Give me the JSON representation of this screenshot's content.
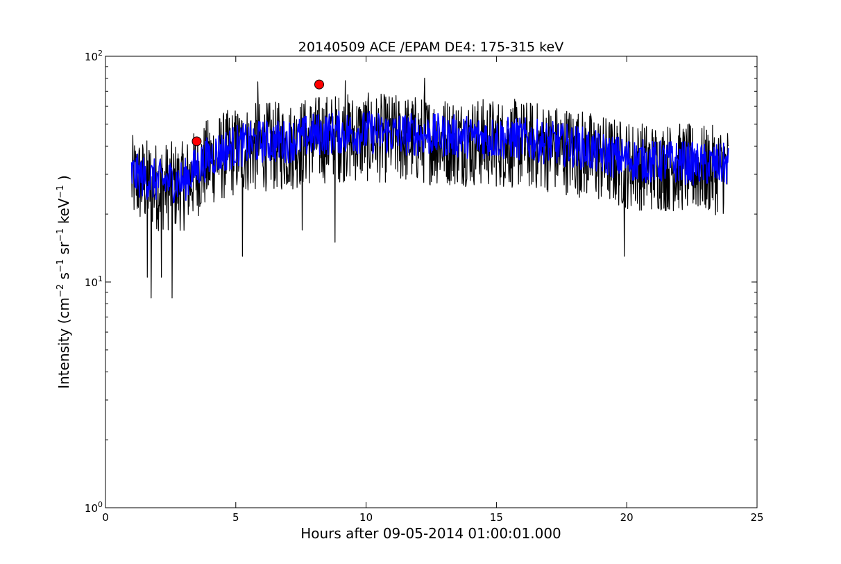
{
  "chart_data": {
    "type": "line",
    "title": "20140509 ACE /EPAM DE4: 175-315 keV",
    "xlabel": "Hours after 09-05-2014 01:00:01.000",
    "ylabel": {
      "prefix": "Intensity (cm",
      "exp1": "−2",
      "s": " s",
      "exp2": "−1",
      "sr": " sr",
      "exp3": "−1",
      "kev": " keV",
      "exp4": "−1",
      "suffix": " )"
    },
    "xlim": [
      0,
      25
    ],
    "ylim": [
      1,
      100
    ],
    "yscale": "log",
    "grid": false,
    "x_ticks": [
      "0",
      "5",
      "10",
      "15",
      "20",
      "25"
    ],
    "y_ticks": [
      {
        "base": "10",
        "exp": "0",
        "value": 1
      },
      {
        "base": "10",
        "exp": "1",
        "value": 10
      },
      {
        "base": "10",
        "exp": "2",
        "value": 100
      }
    ],
    "series": [
      {
        "color": "#000000",
        "style": "raw",
        "x_range": [
          1.0,
          23.9
        ],
        "anchors_x": [
          1.0,
          2.0,
          3.0,
          4.0,
          5.0,
          6.0,
          7.0,
          8.0,
          9.0,
          10.0,
          12.0,
          14.0,
          16.0,
          18.0,
          19.0,
          20.0,
          21.0,
          22.0,
          23.0,
          23.9
        ],
        "anchors_y": [
          30,
          28,
          28,
          36,
          40,
          42,
          42,
          45,
          46,
          46,
          45,
          44,
          43,
          40,
          37,
          35,
          34,
          34,
          33,
          33
        ],
        "spread_min": 0.6,
        "spread_max": 1.5,
        "spikes": [
          [
            8.8,
            15
          ],
          [
            5.25,
            13
          ],
          [
            7.55,
            17
          ],
          [
            1.75,
            8.5
          ],
          [
            2.55,
            8.5
          ],
          [
            19.9,
            13
          ],
          [
            1.6,
            10.5
          ],
          [
            2.15,
            10.5
          ],
          [
            12.25,
            80
          ],
          [
            9.2,
            78
          ],
          [
            5.85,
            77
          ]
        ]
      },
      {
        "color": "#0000ff",
        "style": "smoothed",
        "x_range": [
          1.0,
          23.9
        ],
        "anchors_x": [
          1.0,
          2.0,
          3.0,
          4.0,
          5.0,
          6.0,
          7.0,
          8.0,
          9.0,
          10.0,
          12.0,
          14.0,
          16.0,
          18.0,
          19.0,
          20.0,
          21.0,
          22.0,
          23.0,
          23.9
        ],
        "anchors_y": [
          30,
          28,
          28,
          36,
          40,
          42,
          42,
          45,
          46,
          46,
          45,
          44,
          43,
          40,
          37,
          35,
          34,
          34,
          33,
          33
        ],
        "spread_min": 0.8,
        "spread_max": 1.25
      }
    ],
    "markers": [
      {
        "x": 3.5,
        "y": 42,
        "color": "#ff0000"
      },
      {
        "x": 8.2,
        "y": 75,
        "color": "#ff0000"
      }
    ]
  }
}
